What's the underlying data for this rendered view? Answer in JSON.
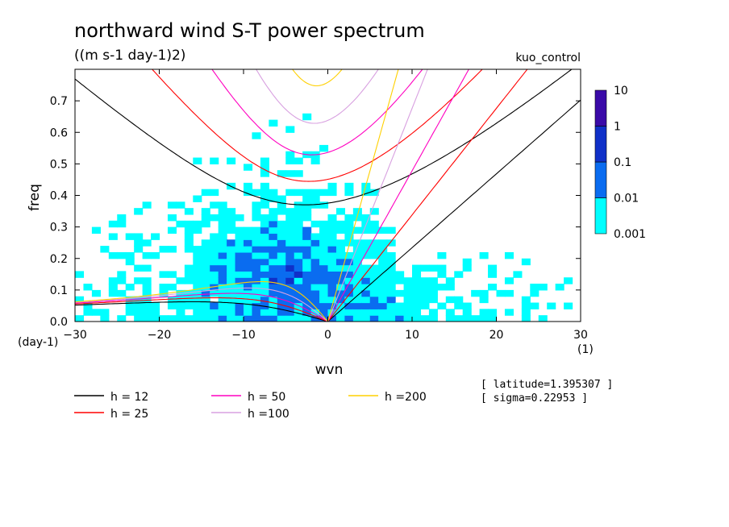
{
  "chart_data": {
    "type": "heatmap",
    "title": "northward wind S-T power spectrum",
    "subtitle": "((m s-1 day-1)2)",
    "case_label": "kuo_control",
    "xlabel": "wvn",
    "ylabel": "freq",
    "x_unit": "(1)",
    "y_unit": "(day-1)",
    "xlim": [
      -30,
      30
    ],
    "ylim": [
      0,
      0.8
    ],
    "x_ticks": [
      -30,
      -20,
      -10,
      0,
      10,
      20,
      30
    ],
    "y_ticks": [
      0.0,
      0.1,
      0.2,
      0.3,
      0.4,
      0.5,
      0.6,
      0.7
    ],
    "color_levels": [
      0.001,
      0.01,
      0.1,
      1,
      10
    ],
    "color_level_labels": [
      "0.001",
      "0.01",
      "0.1",
      "1",
      "10"
    ],
    "level_colors": [
      "#00ffff",
      "#0a6cf0",
      "#1030c8",
      "#3a0aa8"
    ],
    "dispersion_curves": [
      {
        "label": "h = 12",
        "h": 12,
        "color": "#000000"
      },
      {
        "label": "h = 25",
        "h": 25,
        "color": "#ff0000"
      },
      {
        "label": "h = 50",
        "h": 50,
        "color": "#ff00c0"
      },
      {
        "label": "h =100",
        "h": 100,
        "color": "#d8a0e0"
      },
      {
        "label": "h =200",
        "h": 200,
        "color": "#ffd000"
      }
    ],
    "info": [
      "[ latitude=1.395307 ]",
      "[ sigma=0.22953 ]"
    ]
  }
}
